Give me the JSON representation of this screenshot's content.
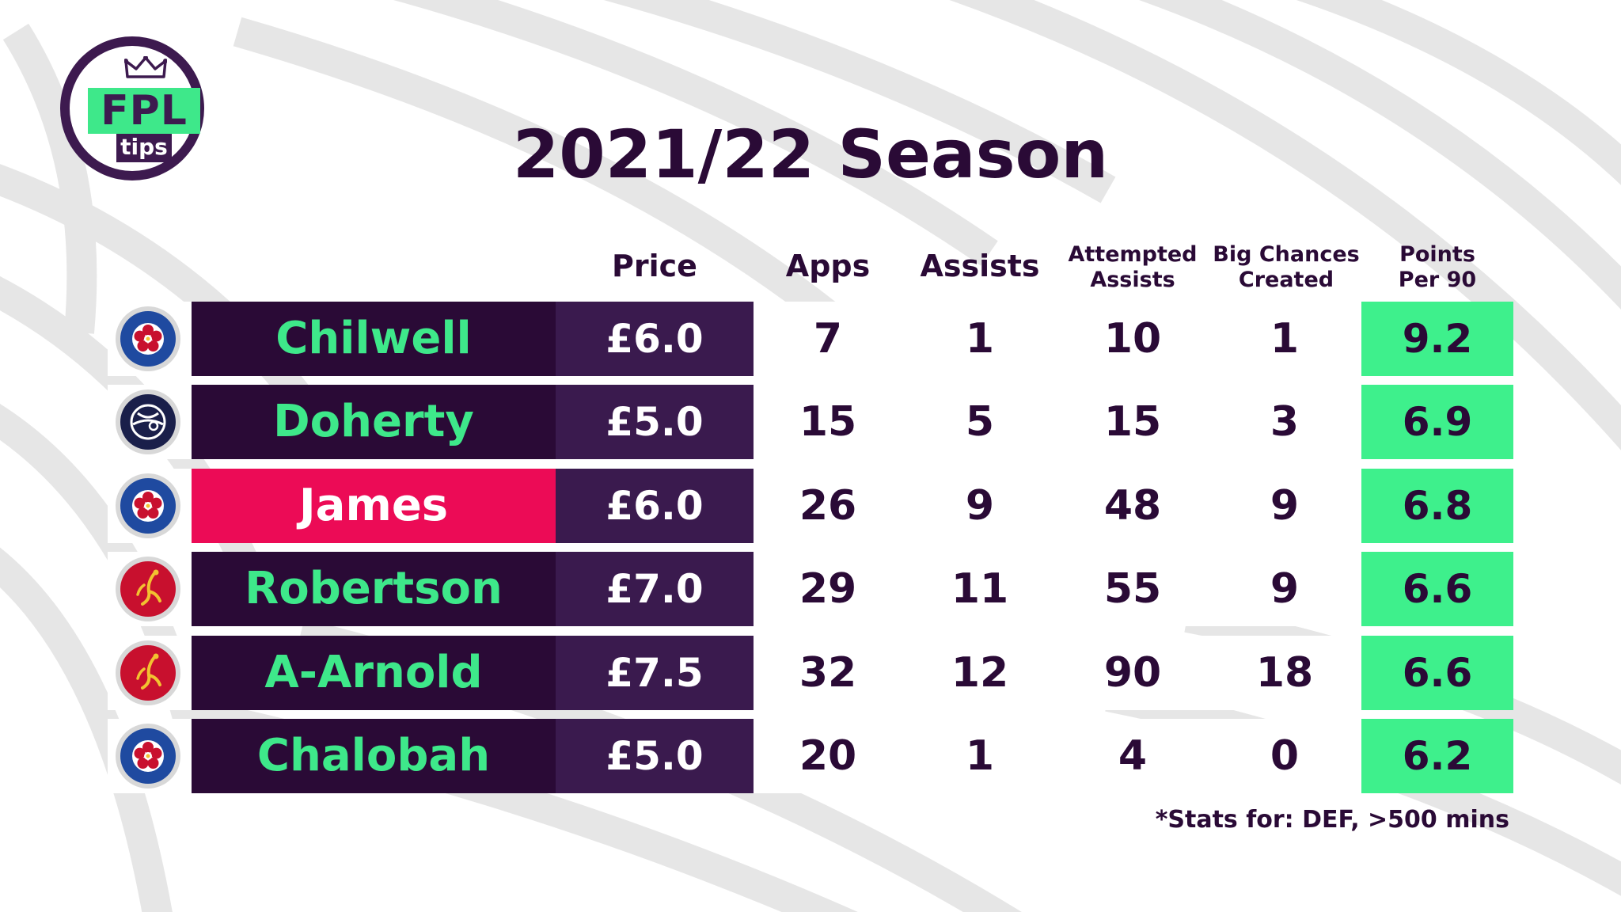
{
  "logo": {
    "main": "FPL",
    "sub": "tips"
  },
  "title": "2021/22 Season",
  "columns": {
    "price": "Price",
    "apps": "Apps",
    "assists": "Assists",
    "attempted_assists": [
      "Attempted",
      "Assists"
    ],
    "big_chances": [
      "Big Chances",
      "Created"
    ],
    "points_per_90": [
      "Points",
      "Per 90"
    ]
  },
  "colors": {
    "name_bg": "#2a0a36",
    "name_text": "#3ee88a",
    "highlight_bg": "#ec0b56",
    "price_bg": "#3a1a4e",
    "ppg_bg": "#3ef08c",
    "chelsea_blue": "#1f4aa0",
    "liverpool_red": "#c8102e",
    "wolves_navy": "#1a1f4a"
  },
  "rows": [
    {
      "club": "chelsea-crest-icon",
      "name": "Chilwell",
      "price": "£6.0",
      "apps": "7",
      "assists": "1",
      "attempted_assists": "10",
      "big_chances": "1",
      "ppg": "9.2",
      "highlight": false
    },
    {
      "club": "tottenham-crest-icon",
      "name": "Doherty",
      "price": "£5.0",
      "apps": "15",
      "assists": "5",
      "attempted_assists": "15",
      "big_chances": "3",
      "ppg": "6.9",
      "highlight": false
    },
    {
      "club": "chelsea-crest-icon",
      "name": "James",
      "price": "£6.0",
      "apps": "26",
      "assists": "9",
      "attempted_assists": "48",
      "big_chances": "9",
      "ppg": "6.8",
      "highlight": true
    },
    {
      "club": "liverpool-crest-icon",
      "name": "Robertson",
      "price": "£7.0",
      "apps": "29",
      "assists": "11",
      "attempted_assists": "55",
      "big_chances": "9",
      "ppg": "6.6",
      "highlight": false
    },
    {
      "club": "liverpool-crest-icon",
      "name": "A-Arnold",
      "price": "£7.5",
      "apps": "32",
      "assists": "12",
      "attempted_assists": "90",
      "big_chances": "18",
      "ppg": "6.6",
      "highlight": false
    },
    {
      "club": "chelsea-crest-icon",
      "name": "Chalobah",
      "price": "£5.0",
      "apps": "20",
      "assists": "1",
      "attempted_assists": "4",
      "big_chances": "0",
      "ppg": "6.2",
      "highlight": false
    }
  ],
  "footnote": "*Stats for: DEF, >500 mins"
}
